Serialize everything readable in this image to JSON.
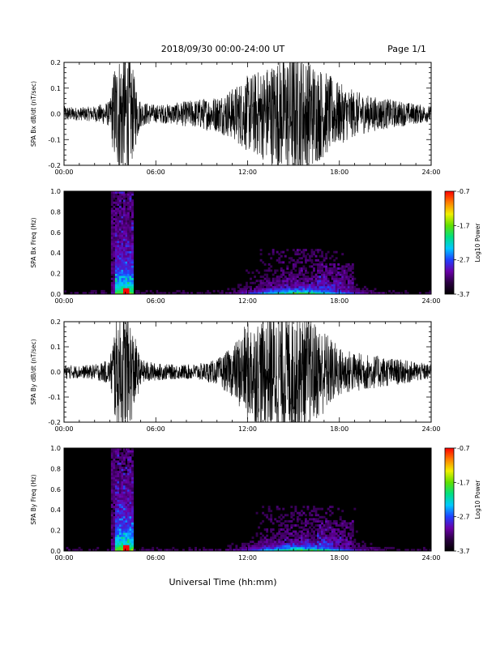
{
  "header": {
    "date_range": "2018/09/30   00:00-24:00 UT",
    "page_label": "Page 1/1"
  },
  "x_axis_label": "Universal Time (hh:mm)",
  "colors": {
    "trace": "#000000",
    "background": "#000000",
    "colormap": [
      "#000000",
      "#2a0040",
      "#6a00a8",
      "#2040ff",
      "#00c8ff",
      "#00e080",
      "#60e000",
      "#f0f000",
      "#ff8000",
      "#ff0000"
    ]
  },
  "chart_data": [
    {
      "type": "line",
      "ylabel": "SPA Bx dB/dt (nT/sec)",
      "xlim": [
        0,
        24
      ],
      "x_ticks": [
        "00:00",
        "06:00",
        "12:00",
        "18:00",
        "24:00"
      ],
      "ylim": [
        -0.2,
        0.2
      ],
      "y_ticks": [
        "0.2",
        "0.1",
        "0.0",
        "-0.1",
        "-0.2"
      ],
      "series": [
        {
          "envelope_hour": [
            0,
            1,
            2,
            3,
            3.3,
            3.7,
            4.2,
            4.6,
            5,
            6,
            7,
            8,
            9,
            10,
            11,
            12,
            13,
            14,
            15,
            16,
            17,
            18,
            19,
            20,
            21,
            22,
            23,
            24
          ],
          "envelope_amplitude": [
            0.03,
            0.025,
            0.03,
            0.05,
            0.2,
            0.25,
            0.25,
            0.15,
            0.05,
            0.035,
            0.04,
            0.05,
            0.06,
            0.07,
            0.1,
            0.15,
            0.18,
            0.22,
            0.25,
            0.22,
            0.17,
            0.12,
            0.09,
            0.07,
            0.06,
            0.05,
            0.04,
            0.03
          ]
        }
      ]
    },
    {
      "type": "heatmap",
      "ylabel": "SPA Bx Freq (Hz)",
      "xlim": [
        0,
        24
      ],
      "x_ticks": [
        "00:00",
        "06:00",
        "12:00",
        "18:00",
        "24:00"
      ],
      "ylim": [
        0,
        1.0
      ],
      "y_ticks": [
        "1.0",
        "0.8",
        "0.6",
        "0.4",
        "0.2",
        "0.0"
      ],
      "colorbar": {
        "label": "Log10 Power",
        "range": [
          -3.7,
          -0.7
        ],
        "ticks": [
          "-0.7",
          "-1.7",
          "-2.7",
          "-3.7"
        ]
      }
    },
    {
      "type": "line",
      "ylabel": "SPA By dB/dt (nT/sec)",
      "xlim": [
        0,
        24
      ],
      "x_ticks": [
        "00:00",
        "06:00",
        "12:00",
        "18:00",
        "24:00"
      ],
      "ylim": [
        -0.2,
        0.2
      ],
      "y_ticks": [
        "0.2",
        "0.1",
        "0.0",
        "-0.1",
        "-0.2"
      ],
      "series": [
        {
          "envelope_hour": [
            0,
            1,
            2,
            3,
            3.3,
            3.7,
            4.2,
            4.6,
            5,
            6,
            7,
            8,
            9,
            10,
            11,
            12,
            13,
            14,
            15,
            16,
            17,
            18,
            19,
            20,
            21,
            22,
            23,
            24
          ],
          "envelope_amplitude": [
            0.03,
            0.025,
            0.03,
            0.05,
            0.2,
            0.25,
            0.25,
            0.15,
            0.05,
            0.035,
            0.03,
            0.03,
            0.035,
            0.05,
            0.1,
            0.2,
            0.22,
            0.25,
            0.25,
            0.22,
            0.17,
            0.1,
            0.08,
            0.07,
            0.06,
            0.05,
            0.04,
            0.03
          ]
        }
      ]
    },
    {
      "type": "heatmap",
      "ylabel": "SPA By Freq (Hz)",
      "xlim": [
        0,
        24
      ],
      "x_ticks": [
        "00:00",
        "06:00",
        "12:00",
        "18:00",
        "24:00"
      ],
      "ylim": [
        0,
        1.0
      ],
      "y_ticks": [
        "1.0",
        "0.8",
        "0.6",
        "0.4",
        "0.2",
        "0.0"
      ],
      "colorbar": {
        "label": "Log10 Power",
        "range": [
          -3.7,
          -0.7
        ],
        "ticks": [
          "-0.7",
          "-1.7",
          "-2.7",
          "-3.7"
        ]
      }
    }
  ]
}
